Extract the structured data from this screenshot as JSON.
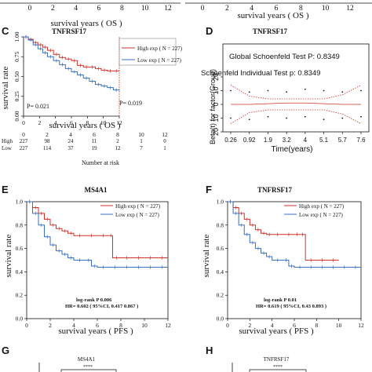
{
  "figure": {
    "top_strip": {
      "ticks": [
        "0",
        "2",
        "4",
        "6",
        "8",
        "10",
        "12"
      ],
      "xlabel": "survival years ( OS )"
    },
    "panels": {
      "C": {
        "letter": "C",
        "gene": "TNFRSF17",
        "ylabel": "survival rate",
        "yticks": [
          "0.00",
          "0.25",
          "0.50",
          "0.75",
          "1.00"
        ],
        "xticks": [
          "0",
          "2",
          "4",
          "6",
          "8",
          "10",
          "12"
        ],
        "xlabel": "survival years ( OS )",
        "p_left": "P= 0.021",
        "p_right": "P= 0.019",
        "legend": [
          "High exp ( N = 227)",
          "Low exp ( N = 227)"
        ],
        "risk_table": {
          "label": "Number at risk",
          "rows": [
            {
              "group": "High",
              "values": [
                "227",
                "98",
                "24",
                "11",
                "2",
                "1",
                "0"
              ]
            },
            {
              "group": "Low",
              "values": [
                "227",
                "114",
                "37",
                "19",
                "12",
                "7",
                "1"
              ]
            }
          ]
        }
      },
      "D": {
        "letter": "D",
        "gene": "TNFRSF17",
        "global_test": "Global Schoenfeld Test P: 0.8349",
        "individual_test": "Schoenfeld Individual Test p: 0.8349",
        "ylabel": "Beta(t) for factor(Group)",
        "yticks": [
          "20",
          "10",
          "0",
          "10",
          "20"
        ],
        "xticks": [
          "0.26",
          "0.92",
          "1.9",
          "3.2",
          "4",
          "5.1",
          "5.7",
          "7.6"
        ],
        "xlabel": "Time(years)"
      },
      "E": {
        "letter": "E",
        "gene": "MS4A1",
        "ylabel": "survival rate",
        "yticks": [
          "0.0",
          "0.2",
          "0.4",
          "0.6",
          "0.8",
          "1.0"
        ],
        "xticks": [
          "0",
          "2",
          "4",
          "6",
          "8",
          "10",
          "12"
        ],
        "xlabel": "survival years  ( PFS )",
        "legend": [
          "High exp ( N = 227)",
          "Low exp ( N = 227)"
        ],
        "stats_1": "log-rank  P   0.006",
        "stats_2": "HR= 0.602 ( 95%CI, 0.417     0.867 )"
      },
      "F": {
        "letter": "F",
        "gene": "TNFRSF17",
        "ylabel": "survival rate",
        "yticks": [
          "0.0",
          "0.2",
          "0.4",
          "0.6",
          "0.8",
          "1.0"
        ],
        "xticks": [
          "0",
          "2",
          "4",
          "6",
          "8",
          "10",
          "12"
        ],
        "xlabel": "survival years  ( PFS )",
        "legend": [
          "High exp ( N = 227)",
          "Low exp ( N = 227)"
        ],
        "stats_1": "log-rank  P   0.01",
        "stats_2": "HR= 0.619 ( 95%CI, 0.43     0.893 )"
      },
      "G": {
        "letter": "G",
        "gene": "MS4A1",
        "sig": "****"
      },
      "H": {
        "letter": "H",
        "gene": "TNFRSF17",
        "sig": "****"
      }
    }
  },
  "colors": {
    "high": "#d0322b",
    "low": "#3a6fc0",
    "axis": "#111111",
    "ci": "#d0322b"
  },
  "chart_data": [
    {
      "panel": "C",
      "type": "line",
      "title": "TNFRSF17",
      "xlabel": "survival years ( OS )",
      "ylabel": "survival rate",
      "xlim": [
        0,
        8
      ],
      "ylim": [
        0,
        1
      ],
      "series": [
        {
          "name": "High exp ( N = 227)",
          "x": [
            0,
            0.4,
            0.8,
            1.2,
            1.6,
            2,
            2.5,
            3,
            3.5,
            4,
            4.5,
            5,
            5.5,
            6,
            6.5,
            7,
            7.5,
            8
          ],
          "y": [
            1,
            0.97,
            0.93,
            0.9,
            0.87,
            0.83,
            0.78,
            0.74,
            0.72,
            0.7,
            0.64,
            0.62,
            0.62,
            0.6,
            0.58,
            0.57,
            0.57,
            0.57
          ]
        },
        {
          "name": "Low exp ( N = 227)",
          "x": [
            0,
            0.4,
            0.8,
            1.2,
            1.6,
            2,
            2.5,
            3,
            3.5,
            4,
            4.5,
            5,
            5.5,
            6,
            6.5,
            7,
            7.5,
            8
          ],
          "y": [
            1,
            0.96,
            0.9,
            0.85,
            0.8,
            0.75,
            0.7,
            0.65,
            0.6,
            0.56,
            0.52,
            0.48,
            0.44,
            0.4,
            0.38,
            0.36,
            0.33,
            0.32
          ]
        }
      ]
    },
    {
      "panel": "D",
      "type": "scatter",
      "title": "Global Schoenfeld Test P: 0.8349",
      "xlabel": "Time(years)",
      "ylabel": "Beta(t) for factor(Group)",
      "ylim": [
        -20,
        20
      ],
      "x_categories": [
        "0.26",
        "0.92",
        "1.9",
        "3.2",
        "4",
        "5.1",
        "5.7",
        "7.6"
      ],
      "fit": [
        0,
        0,
        0.5,
        1,
        1,
        0.5,
        0,
        0
      ],
      "ci_upper": [
        14,
        6,
        4,
        4,
        4,
        4,
        7,
        14
      ],
      "ci_lower": [
        -14,
        -6,
        -4,
        -4,
        -4,
        -4,
        -7,
        -14
      ],
      "residuals_upper": [
        10,
        9,
        10,
        9,
        11,
        10,
        9,
        10
      ],
      "residuals_lower": [
        -10,
        -11,
        -9,
        -10,
        -9,
        -11,
        -10,
        -9
      ]
    },
    {
      "panel": "E",
      "type": "line",
      "title": "MS4A1",
      "xlabel": "survival years  ( PFS )",
      "ylabel": "survival rate",
      "xlim": [
        0,
        12
      ],
      "ylim": [
        0,
        1
      ],
      "series": [
        {
          "name": "High exp ( N = 227)",
          "x": [
            0,
            0.5,
            1,
            1.5,
            2,
            2.5,
            3,
            3.5,
            4,
            5,
            6,
            7,
            7.3,
            8,
            9,
            10,
            11,
            12
          ],
          "y": [
            1,
            0.95,
            0.9,
            0.85,
            0.8,
            0.77,
            0.75,
            0.73,
            0.71,
            0.71,
            0.71,
            0.71,
            0.52,
            0.52,
            0.52,
            0.52,
            0.52,
            0.52
          ]
        },
        {
          "name": "Low exp ( N = 227)",
          "x": [
            0,
            0.5,
            1,
            1.5,
            2,
            2.5,
            3,
            3.5,
            4,
            5,
            5.5,
            6,
            7,
            8,
            9,
            10,
            11,
            12
          ],
          "y": [
            1,
            0.9,
            0.8,
            0.7,
            0.63,
            0.58,
            0.55,
            0.52,
            0.5,
            0.5,
            0.45,
            0.44,
            0.44,
            0.44,
            0.44,
            0.44,
            0.44,
            0.44
          ]
        }
      ]
    },
    {
      "panel": "F",
      "type": "line",
      "title": "TNFRSF17",
      "xlabel": "survival years  ( PFS )",
      "ylabel": "survival rate",
      "xlim": [
        0,
        12
      ],
      "ylim": [
        0,
        1
      ],
      "series": [
        {
          "name": "High exp ( N = 227)",
          "x": [
            0,
            0.5,
            1,
            1.5,
            2,
            2.5,
            3,
            3.5,
            4,
            5,
            6,
            6.5,
            7,
            8,
            9,
            10
          ],
          "y": [
            1,
            0.95,
            0.9,
            0.85,
            0.8,
            0.76,
            0.73,
            0.72,
            0.72,
            0.72,
            0.72,
            0.72,
            0.5,
            0.5,
            0.5,
            0.5
          ]
        },
        {
          "name": "Low exp ( N = 227)",
          "x": [
            0,
            0.5,
            1,
            1.5,
            2,
            2.5,
            3,
            3.5,
            4,
            5,
            5.5,
            6,
            7,
            8,
            9,
            10,
            11,
            12
          ],
          "y": [
            1,
            0.9,
            0.8,
            0.72,
            0.65,
            0.6,
            0.56,
            0.53,
            0.5,
            0.5,
            0.45,
            0.44,
            0.44,
            0.44,
            0.44,
            0.44,
            0.44,
            0.44
          ]
        }
      ]
    }
  ]
}
